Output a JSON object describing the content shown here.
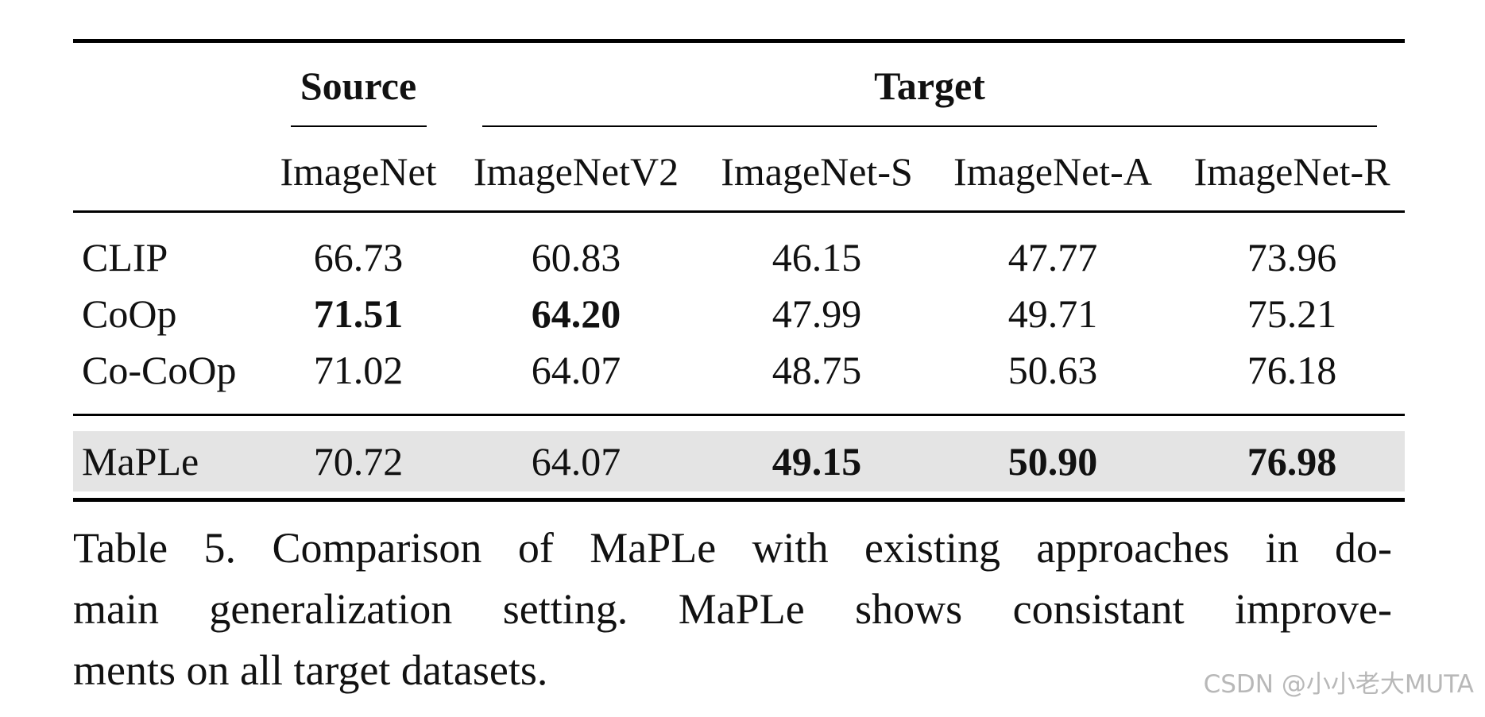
{
  "table": {
    "group_headers": {
      "source": "Source",
      "target": "Target"
    },
    "columns": [
      "ImageNet",
      "ImageNetV2",
      "ImageNet-S",
      "ImageNet-A",
      "ImageNet-R"
    ],
    "rows": [
      {
        "method": "CLIP",
        "values": [
          "66.73",
          "60.83",
          "46.15",
          "47.77",
          "73.96"
        ],
        "bold": [
          false,
          false,
          false,
          false,
          false
        ]
      },
      {
        "method": "CoOp",
        "values": [
          "71.51",
          "64.20",
          "47.99",
          "49.71",
          "75.21"
        ],
        "bold": [
          true,
          true,
          false,
          false,
          false
        ]
      },
      {
        "method": "Co-CoOp",
        "values": [
          "71.02",
          "64.07",
          "48.75",
          "50.63",
          "76.18"
        ],
        "bold": [
          false,
          false,
          false,
          false,
          false
        ]
      },
      {
        "method": "MaPLe",
        "values": [
          "70.72",
          "64.07",
          "49.15",
          "50.90",
          "76.98"
        ],
        "bold": [
          false,
          false,
          true,
          true,
          true
        ],
        "highlighted": true
      }
    ]
  },
  "caption": {
    "line1": "Table 5.  Comparison of MaPLe with existing approaches in do-",
    "line2": "main generalization setting.  MaPLe shows consistant improve-",
    "line3": "ments on all target datasets."
  },
  "watermark": "CSDN @小小老大MUTA"
}
